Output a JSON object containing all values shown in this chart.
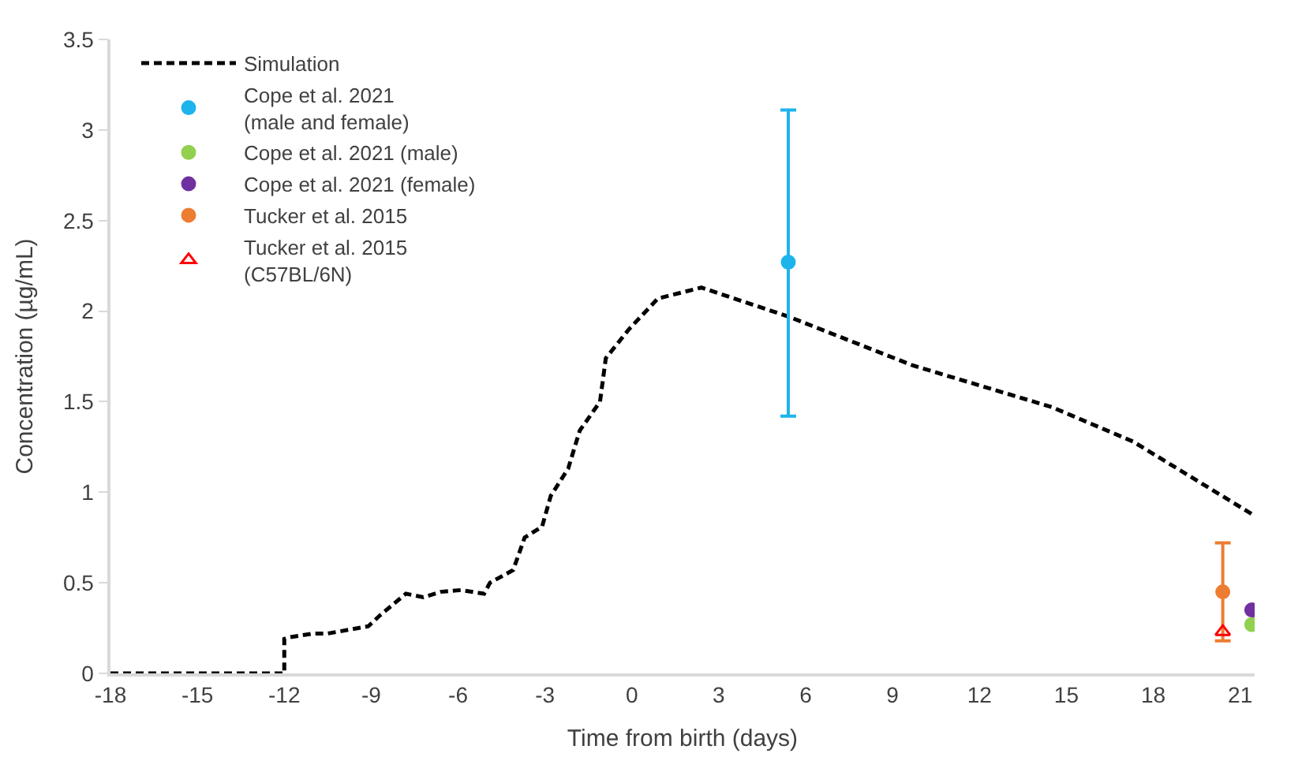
{
  "chart_data": {
    "type": "scatter",
    "xlabel": "Time from birth (days)",
    "ylabel": "Concentration (µg/mL)",
    "xlim": [
      -18,
      21.5
    ],
    "xticks": [
      -18,
      -15,
      -12,
      -9,
      -6,
      -3,
      0,
      3,
      6,
      9,
      12,
      15,
      18,
      21
    ],
    "ylim": [
      0,
      3.5
    ],
    "yticks": [
      0,
      0.5,
      1,
      1.5,
      2,
      2.5,
      3,
      3.5
    ],
    "legend": "top left",
    "series": [
      {
        "name": "Simulation",
        "type": "line",
        "color": "#000000",
        "line_style": "dashed",
        "marker": "none",
        "x": [
          -18,
          -12,
          -12,
          -11.8,
          -11,
          -10.5,
          -9.1,
          -8.7,
          -7.8,
          -7.2,
          -6.6,
          -5.9,
          -5.1,
          -4.9,
          -4.1,
          -3.7,
          -3.1,
          -2.8,
          -2.2,
          -1.8,
          -1.1,
          -0.9,
          -0.1,
          0.9,
          2.4,
          5.4,
          9.7,
          14.5,
          17.3,
          21.4
        ],
        "values": [
          0,
          0,
          0.19,
          0.2,
          0.22,
          0.22,
          0.26,
          0.32,
          0.44,
          0.42,
          0.45,
          0.46,
          0.44,
          0.5,
          0.57,
          0.75,
          0.81,
          0.98,
          1.13,
          1.34,
          1.5,
          1.74,
          1.9,
          2.07,
          2.13,
          1.97,
          1.7,
          1.47,
          1.28,
          0.88
        ]
      },
      {
        "name": "Cope et al. 2021\n(male and female)",
        "color": "#1db4ec",
        "marker": "circle",
        "x": [
          5.4
        ],
        "values": [
          2.27
        ],
        "errors": [
          [
            1.42,
            3.11
          ]
        ]
      },
      {
        "name": "Cope et al. 2021 (male)",
        "color": "#92d050",
        "marker": "circle",
        "x": [
          21.4
        ],
        "values": [
          0.27
        ]
      },
      {
        "name": "Cope et al. 2021 (female)",
        "color": "#7030a0",
        "marker": "circle",
        "x": [
          21.4
        ],
        "values": [
          0.35
        ]
      },
      {
        "name": "Tucker et al. 2015",
        "color": "#ed7d31",
        "marker": "circle",
        "x": [
          20.4
        ],
        "values": [
          0.45
        ],
        "errors": [
          0.27
        ]
      },
      {
        "name": "Tucker et al. 2015\n(C57BL/6N)",
        "color": "#ff0000",
        "marker": "triangle",
        "x": [
          20.4
        ],
        "values": [
          0.23
        ]
      }
    ]
  }
}
